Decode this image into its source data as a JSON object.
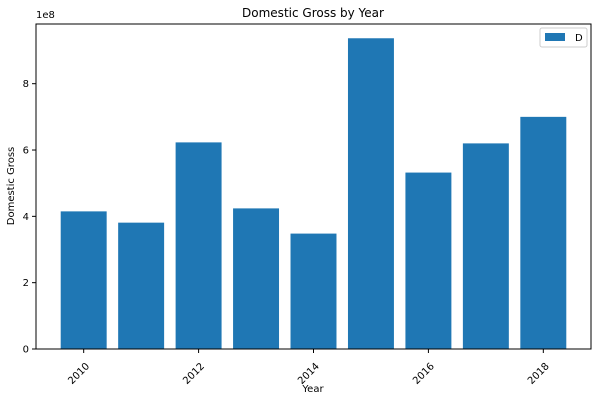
{
  "chart_data": {
    "type": "bar",
    "title": "Domestic Gross by Year",
    "xlabel": "Year",
    "ylabel": "Domestic Gross",
    "y_offset_label": "1e8",
    "x": [
      2010,
      2011,
      2012,
      2013,
      2014,
      2015,
      2016,
      2017,
      2018
    ],
    "values": [
      415000000,
      381000000,
      623000000,
      424000000,
      348000000,
      937000000,
      532000000,
      620000000,
      700000000
    ],
    "xlim": [
      2009.17,
      2018.83
    ],
    "ylim": [
      0,
      980000000
    ],
    "x_ticks": [
      2010,
      2012,
      2014,
      2016,
      2018
    ],
    "x_tick_labels": [
      "2010",
      "2012",
      "2014",
      "2016",
      "2018"
    ],
    "y_ticks": [
      0,
      200000000,
      400000000,
      600000000,
      800000000
    ],
    "y_tick_labels": [
      "0",
      "2",
      "4",
      "6",
      "8"
    ],
    "series": [
      {
        "name": "D",
        "color": "#1f77b4"
      }
    ],
    "legend": "top-right",
    "grid": false
  }
}
